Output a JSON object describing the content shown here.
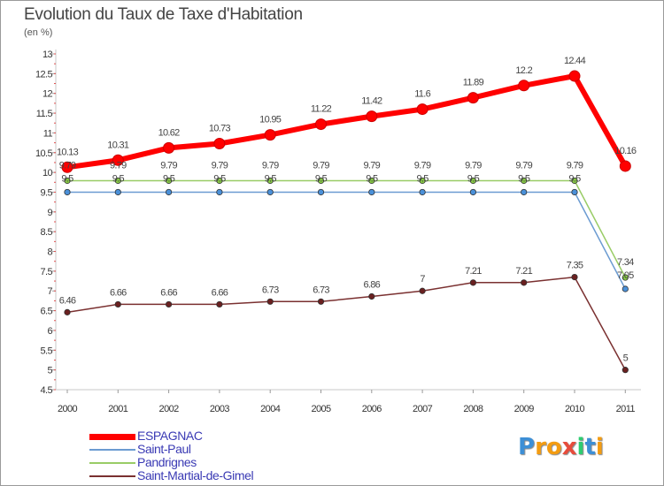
{
  "title": "Evolution du Taux de Taxe d'Habitation",
  "subtitle": "(en %)",
  "logo": {
    "text": "Proxiti",
    "letters": [
      {
        "ch": "P",
        "color": "#3d8fd6"
      },
      {
        "ch": "r",
        "color": "#f39c12"
      },
      {
        "ch": "o",
        "color": "#f39c12"
      },
      {
        "ch": "x",
        "color": "#e74c3c"
      },
      {
        "ch": "i",
        "color": "#2ecc71"
      },
      {
        "ch": "t",
        "color": "#3d8fd6"
      },
      {
        "ch": "i",
        "color": "#f39c12"
      }
    ]
  },
  "chart_data": {
    "type": "line",
    "title": "Evolution du Taux de Taxe d'Habitation",
    "subtitle": "(en %)",
    "xlabel": "",
    "ylabel": "",
    "x": [
      "2000",
      "2001",
      "2002",
      "2003",
      "2004",
      "2005",
      "2006",
      "2007",
      "2008",
      "2009",
      "2010",
      "2011"
    ],
    "ylim": [
      4.5,
      13
    ],
    "yticks": [
      "4.5",
      "5",
      "5.5",
      "6",
      "6.5",
      "7",
      "7.5",
      "8",
      "8.5",
      "9",
      "9.5",
      "10",
      "10.5",
      "11",
      "11.5",
      "12",
      "12.5",
      "13"
    ],
    "grid": false,
    "legend_position": "bottom-left",
    "series": [
      {
        "name": "ESPAGNAC",
        "color": "#ff0000",
        "values": [
          10.13,
          10.31,
          10.62,
          10.73,
          10.95,
          11.22,
          11.42,
          11.6,
          11.89,
          12.2,
          12.44,
          10.16
        ],
        "labels": [
          "10.13",
          "10.31",
          "10.62",
          "10.73",
          "10.95",
          "11.22",
          "11.42",
          "11.6",
          "11.89",
          "12.2",
          "12.44",
          "10.16"
        ]
      },
      {
        "name": "Saint-Paul",
        "color": "#6b9bd1",
        "values": [
          9.5,
          9.5,
          9.5,
          9.5,
          9.5,
          9.5,
          9.5,
          9.5,
          9.5,
          9.5,
          9.5,
          7.05
        ],
        "labels": [
          "9.5",
          "9.5",
          "9.5",
          "9.5",
          "9.5",
          "9.5",
          "9.5",
          "9.5",
          "9.5",
          "9.5",
          "9.5",
          "7.05"
        ]
      },
      {
        "name": "Pandrignes",
        "color": "#99cc66",
        "values": [
          9.79,
          9.79,
          9.79,
          9.79,
          9.79,
          9.79,
          9.79,
          9.79,
          9.79,
          9.79,
          9.79,
          7.34
        ],
        "labels": [
          "9.79",
          "9.79",
          "9.79",
          "9.79",
          "9.79",
          "9.79",
          "9.79",
          "9.79",
          "9.79",
          "9.79",
          "9.79",
          "7.34"
        ]
      },
      {
        "name": "Saint-Martial-de-Gimel",
        "color": "#7a3030",
        "values": [
          6.46,
          6.66,
          6.66,
          6.66,
          6.73,
          6.73,
          6.86,
          7,
          7.21,
          7.21,
          7.35,
          5
        ],
        "labels": [
          "6.46",
          "6.66",
          "6.66",
          "6.66",
          "6.73",
          "6.73",
          "6.86",
          "7",
          "7.21",
          "7.21",
          "7.35",
          "5"
        ]
      }
    ]
  }
}
